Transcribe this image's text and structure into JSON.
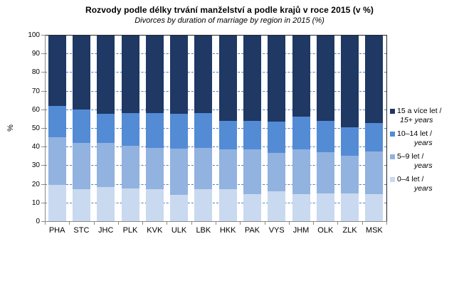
{
  "chart_data": {
    "type": "bar",
    "stacked": true,
    "title": "Rozvody podle délky trvání manželství a podle krajů v roce 2015 (v %)",
    "subtitle": "Divorces by duration of marriage by region in 2015 (%)",
    "ylabel": "%",
    "ylim": [
      0,
      100
    ],
    "yticks": [
      0,
      10,
      20,
      30,
      40,
      50,
      60,
      70,
      80,
      90,
      100
    ],
    "grid": "horizontal-dashed",
    "legend_position": "right",
    "categories": [
      "PHA",
      "STC",
      "JHC",
      "PLK",
      "KVK",
      "ULK",
      "LBK",
      "HKK",
      "PAK",
      "VYS",
      "JHM",
      "OLK",
      "ZLK",
      "MSK"
    ],
    "series": [
      {
        "label_cs": "0–4 let /",
        "label_en": "years",
        "color": "#C9D9F0",
        "values": [
          19.5,
          17.0,
          18.5,
          17.5,
          17.0,
          14.0,
          17.0,
          17.0,
          14.5,
          16.0,
          14.5,
          15.0,
          15.0,
          14.5
        ]
      },
      {
        "label_cs": "5–9 let /",
        "label_en": "years",
        "color": "#92B2DF",
        "values": [
          25.5,
          25.0,
          23.5,
          23.0,
          22.5,
          25.0,
          22.5,
          21.5,
          24.0,
          20.5,
          24.0,
          22.0,
          20.0,
          23.0
        ]
      },
      {
        "label_cs": "10–14 let /",
        "label_en": "years",
        "color": "#538BD5",
        "values": [
          17.0,
          18.0,
          15.5,
          17.5,
          18.5,
          18.5,
          18.5,
          15.5,
          15.5,
          17.0,
          17.5,
          17.0,
          15.5,
          15.0
        ]
      },
      {
        "label_cs": "15 a více let /",
        "label_en": "15+ years",
        "color": "#1F3864",
        "values": [
          38.0,
          40.0,
          42.5,
          42.0,
          42.0,
          42.5,
          42.0,
          46.0,
          46.0,
          46.5,
          44.0,
          46.0,
          49.5,
          47.5
        ]
      }
    ]
  },
  "colors": {
    "gridline": "#4A7EBF",
    "axis": "#898989",
    "plot_border": "#262626",
    "text": "#000000",
    "background": "#FFFFFF"
  }
}
